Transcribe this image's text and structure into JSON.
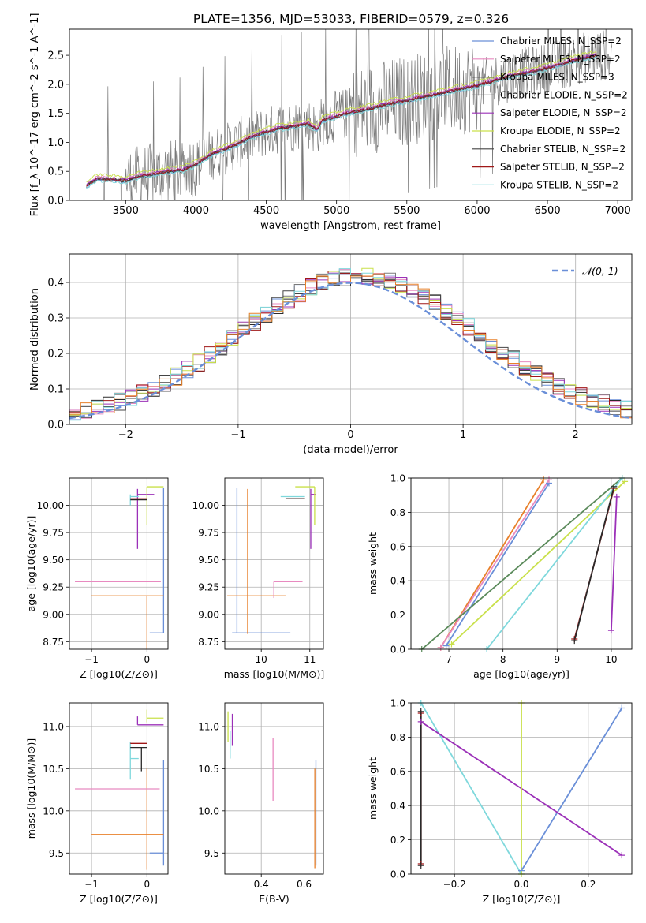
{
  "figure_title": "PLATE=1356, MJD=53033, FIBERID=0579, z=0.326",
  "palette": {
    "chabrier_miles": "#6a8fd8",
    "salpeter_miles": "#e88ac0",
    "kroupa_miles": "#2a2a2a",
    "chabrier_elodie": "#7a7a7a",
    "salpeter_elodie": "#9b30b8",
    "kroupa_elodie": "#c9e04a",
    "chabrier_stelib": "#444444",
    "salpeter_stelib": "#a01818",
    "kroupa_stelib": "#7fd8dc",
    "orange": "#e8802a",
    "green": "#5a8a5a"
  },
  "chart_data": [
    {
      "id": "spectrum",
      "type": "line",
      "xlabel": "wavelength [Angstrom, rest frame]",
      "ylabel": "Flux [f_λ 10^-17 erg cm^-2 s^-1 A^-1]",
      "xlim": [
        3100,
        7100
      ],
      "ylim": [
        0,
        2.95
      ],
      "xticks": [
        3500,
        4000,
        4500,
        5000,
        5500,
        6000,
        6500,
        7000
      ],
      "yticks": [
        0.0,
        0.5,
        1.0,
        1.5,
        2.0,
        2.5
      ],
      "grid": false,
      "legend_position": "top-right",
      "legend": [
        {
          "label": "Chabrier MILES, N_SSP=2",
          "color_key": "chabrier_miles"
        },
        {
          "label": "Salpeter MILES, N_SSP=2",
          "color_key": "salpeter_miles"
        },
        {
          "label": "Kroupa MILES, N_SSP=3",
          "color_key": "kroupa_miles"
        },
        {
          "label": "Chabrier ELODIE, N_SSP=2",
          "color_key": "chabrier_elodie"
        },
        {
          "label": "Salpeter ELODIE, N_SSP=2",
          "color_key": "salpeter_elodie"
        },
        {
          "label": "Kroupa ELODIE, N_SSP=2",
          "color_key": "kroupa_elodie"
        },
        {
          "label": "Chabrier STELIB, N_SSP=2",
          "color_key": "chabrier_stelib"
        },
        {
          "label": "Salpeter STELIB, N_SSP=2",
          "color_key": "salpeter_stelib"
        },
        {
          "label": "Kroupa STELIB, N_SSP=2",
          "color_key": "kroupa_stelib"
        }
      ],
      "model_x": [
        3220,
        3300,
        3400,
        3500,
        3600,
        3700,
        3800,
        3900,
        4000,
        4100,
        4200,
        4300,
        4400,
        4500,
        4600,
        4700,
        4800,
        4860,
        4900,
        5000,
        5100,
        5200,
        5300,
        5400,
        5500,
        5600,
        5700,
        5800,
        5900,
        6000,
        6100,
        6200,
        6300,
        6400,
        6500,
        6600,
        6700,
        6800,
        6850
      ],
      "model_y": [
        0.25,
        0.38,
        0.36,
        0.34,
        0.42,
        0.45,
        0.5,
        0.52,
        0.62,
        0.78,
        0.88,
        0.98,
        1.1,
        1.18,
        1.25,
        1.28,
        1.32,
        1.22,
        1.38,
        1.45,
        1.52,
        1.56,
        1.62,
        1.68,
        1.72,
        1.78,
        1.82,
        1.88,
        1.93,
        1.98,
        2.05,
        2.12,
        2.18,
        2.22,
        2.28,
        2.35,
        2.42,
        2.48,
        2.5
      ],
      "model_offsets": {
        "chabrier_miles": -0.02,
        "salpeter_miles": 0.03,
        "kroupa_miles": 0.0,
        "chabrier_elodie": 0.0,
        "salpeter_elodie": 0.01,
        "kroupa_elodie": 0.07,
        "chabrier_stelib": -0.01,
        "salpeter_stelib": 0.0,
        "kroupa_stelib": -0.04
      },
      "data_color_key": "chabrier_elodie"
    },
    {
      "id": "residuals",
      "type": "line",
      "xlabel": "(data-model)/error",
      "ylabel": "Normed distribution",
      "xlim": [
        -2.5,
        2.5
      ],
      "ylim": [
        0,
        0.48
      ],
      "xticks": [
        -2,
        -1,
        0,
        1,
        2
      ],
      "yticks": [
        0.0,
        0.1,
        0.2,
        0.3,
        0.4
      ],
      "grid": true,
      "legend_position": "top-right",
      "legend": [
        {
          "label": "𝒩(0, 1)",
          "color_key": "chabrier_miles",
          "dashed": true
        }
      ],
      "bin_width": 0.1,
      "histogram_amplitude": 0.405,
      "histogram_sigma": 1.05,
      "histogram_center": 0.07,
      "series_keys": [
        "chabrier_miles",
        "salpeter_miles",
        "kroupa_miles",
        "chabrier_elodie",
        "salpeter_elodie",
        "kroupa_elodie",
        "chabrier_stelib",
        "salpeter_stelib",
        "kroupa_stelib",
        "orange"
      ]
    },
    {
      "id": "age_vs_Z",
      "type": "scatter",
      "xlabel": "Z [log10(Z/Z⊙)]",
      "ylabel": "age  [log10(age/yr)]",
      "xlim": [
        -1.4,
        0.38
      ],
      "ylim": [
        8.68,
        10.25
      ],
      "xticks": [
        -1,
        0
      ],
      "yticks": [
        8.75,
        9.0,
        9.25,
        9.5,
        9.75,
        10.0
      ],
      "grid": true,
      "errorbars": [
        {
          "color_key": "chabrier_miles",
          "x": 0.3,
          "y": 8.83,
          "xerr": [
            0.25,
            0.0
          ],
          "yerr": [
            0.0,
            1.33
          ]
        },
        {
          "color_key": "orange",
          "x": 0.0,
          "y": 9.17,
          "xerr": [
            1.0,
            0.3
          ],
          "yerr": [
            1.0,
            0.0
          ]
        },
        {
          "color_key": "salpeter_miles",
          "x": 0.0,
          "y": 9.3,
          "xerr": [
            1.3,
            0.25
          ],
          "yerr": [
            0.0,
            0.0
          ]
        },
        {
          "color_key": "salpeter_elodie",
          "x": -0.17,
          "y": 10.1,
          "xerr": [
            0.0,
            0.3
          ],
          "yerr": [
            0.5,
            0.05
          ]
        },
        {
          "color_key": "kroupa_elodie",
          "x": 0.0,
          "y": 10.17,
          "xerr": [
            0.0,
            0.3
          ],
          "yerr": [
            0.35,
            0.0
          ]
        },
        {
          "color_key": "kroupa_stelib",
          "x": -0.3,
          "y": 10.08,
          "xerr": [
            0.0,
            0.15
          ],
          "yerr": [
            0.08,
            0.02
          ]
        },
        {
          "color_key": "salpeter_stelib",
          "x": -0.1,
          "y": 10.06,
          "xerr": [
            0.2,
            0.1
          ],
          "yerr": [
            0.0,
            0.0
          ]
        },
        {
          "color_key": "kroupa_miles",
          "x": -0.1,
          "y": 10.05,
          "xerr": [
            0.2,
            0.1
          ],
          "yerr": [
            0.0,
            0.0
          ]
        }
      ]
    },
    {
      "id": "age_vs_mass",
      "type": "scatter",
      "xlabel": "mass [log10(M/M⊙)]",
      "ylabel": "",
      "xlim": [
        9.25,
        11.28
      ],
      "ylim": [
        8.68,
        10.25
      ],
      "xticks": [
        10,
        11
      ],
      "yticks": [
        8.75,
        9.0,
        9.25,
        9.5,
        9.75,
        10.0
      ],
      "grid": true,
      "errorbars": [
        {
          "color_key": "chabrier_miles",
          "x": 9.5,
          "y": 8.83,
          "xerr": [
            0.1,
            1.1
          ],
          "yerr": [
            0.0,
            1.33
          ]
        },
        {
          "color_key": "orange",
          "x": 9.72,
          "y": 9.17,
          "xerr": [
            0.42,
            0.78
          ],
          "yerr": [
            0.35,
            0.98
          ]
        },
        {
          "color_key": "salpeter_miles",
          "x": 10.26,
          "y": 9.3,
          "xerr": [
            0.0,
            0.59
          ],
          "yerr": [
            0.15,
            0.0
          ]
        },
        {
          "color_key": "salpeter_elodie",
          "x": 11.02,
          "y": 10.1,
          "xerr": [
            0.0,
            0.1
          ],
          "yerr": [
            0.5,
            0.05
          ]
        },
        {
          "color_key": "kroupa_elodie",
          "x": 11.1,
          "y": 10.17,
          "xerr": [
            0.4,
            0.0
          ],
          "yerr": [
            0.35,
            0.0
          ]
        },
        {
          "color_key": "kroupa_stelib",
          "x": 10.4,
          "y": 10.08,
          "xerr": [
            0.0,
            0.5
          ],
          "yerr": [
            0.0,
            0.0
          ]
        },
        {
          "color_key": "salpeter_stelib",
          "x": 10.8,
          "y": 10.06,
          "xerr": [
            0.3,
            0.1
          ],
          "yerr": [
            0.0,
            0.0
          ]
        },
        {
          "color_key": "kroupa_miles",
          "x": 10.8,
          "y": 10.06,
          "xerr": [
            0.3,
            0.1
          ],
          "yerr": [
            0.0,
            0.0
          ]
        }
      ]
    },
    {
      "id": "mass_weight_vs_age",
      "type": "line",
      "xlabel": "age  [log10(age/yr)]",
      "ylabel": "mass weight",
      "xlim": [
        6.3,
        10.38
      ],
      "ylim": [
        0,
        1.0
      ],
      "xticks": [
        7,
        8,
        9,
        10
      ],
      "yticks": [
        0.0,
        0.2,
        0.4,
        0.6,
        0.8,
        1.0
      ],
      "grid": true,
      "series": [
        {
          "color_key": "chabrier_miles",
          "x": [
            6.95,
            8.85
          ],
          "y": [
            0.02,
            0.97
          ]
        },
        {
          "color_key": "orange",
          "x": [
            6.85,
            8.75
          ],
          "y": [
            0.01,
            0.99
          ]
        },
        {
          "color_key": "salpeter_miles",
          "x": [
            6.85,
            8.85
          ],
          "y": [
            0.01,
            0.99
          ]
        },
        {
          "color_key": "green",
          "x": [
            6.5,
            10.2
          ],
          "y": [
            0.0,
            1.0
          ]
        },
        {
          "color_key": "kroupa_elodie",
          "x": [
            7.05,
            10.25
          ],
          "y": [
            0.03,
            0.98
          ]
        },
        {
          "color_key": "kroupa_stelib",
          "x": [
            7.7,
            10.2
          ],
          "y": [
            0.0,
            1.0
          ]
        },
        {
          "color_key": "salpeter_stelib",
          "x": [
            9.32,
            10.05
          ],
          "y": [
            0.06,
            0.94
          ]
        },
        {
          "color_key": "kroupa_miles",
          "x": [
            9.32,
            10.05
          ],
          "y": [
            0.05,
            0.95
          ]
        },
        {
          "color_key": "salpeter_elodie",
          "x": [
            10.0,
            10.1
          ],
          "y": [
            0.11,
            0.89
          ]
        }
      ]
    },
    {
      "id": "mass_vs_Z",
      "type": "scatter",
      "xlabel": "Z [log10(Z/Z⊙)]",
      "ylabel": "mass [log10(M/M⊙)]",
      "xlim": [
        -1.4,
        0.38
      ],
      "ylim": [
        9.25,
        11.28
      ],
      "xticks": [
        -1,
        0
      ],
      "yticks": [
        9.5,
        10.0,
        10.5,
        11.0
      ],
      "grid": true,
      "errorbars": [
        {
          "color_key": "chabrier_miles",
          "x": 0.3,
          "y": 9.5,
          "xerr": [
            0.25,
            0.0
          ],
          "yerr": [
            0.15,
            1.1
          ]
        },
        {
          "color_key": "orange",
          "x": 0.0,
          "y": 9.72,
          "xerr": [
            1.0,
            0.3
          ],
          "yerr": [
            0.42,
            0.78
          ]
        },
        {
          "color_key": "salpeter_miles",
          "x": 0.0,
          "y": 10.26,
          "xerr": [
            1.3,
            0.23
          ],
          "yerr": [
            0.0,
            0.0
          ]
        },
        {
          "color_key": "salpeter_elodie",
          "x": -0.17,
          "y": 11.02,
          "xerr": [
            0.0,
            0.47
          ],
          "yerr": [
            0.0,
            0.1
          ]
        },
        {
          "color_key": "kroupa_elodie",
          "x": 0.0,
          "y": 11.1,
          "xerr": [
            0.0,
            0.3
          ],
          "yerr": [
            0.05,
            0.1
          ]
        },
        {
          "color_key": "kroupa_stelib",
          "x": -0.3,
          "y": 10.62,
          "xerr": [
            0.0,
            0.15
          ],
          "yerr": [
            0.25,
            0.2
          ]
        },
        {
          "color_key": "salpeter_stelib",
          "x": -0.1,
          "y": 10.8,
          "xerr": [
            0.2,
            0.1
          ],
          "yerr": [
            0.0,
            0.0
          ]
        },
        {
          "color_key": "kroupa_miles",
          "x": -0.1,
          "y": 10.75,
          "xerr": [
            0.2,
            0.1
          ],
          "yerr": [
            0.28,
            0.0
          ]
        }
      ]
    },
    {
      "id": "mass_vs_ebv",
      "type": "scatter",
      "xlabel": "E(B-V)",
      "ylabel": "",
      "xlim": [
        0.23,
        0.69
      ],
      "ylim": [
        9.25,
        11.28
      ],
      "xticks": [
        0.4,
        0.6
      ],
      "yticks": [
        9.5,
        10.0,
        10.5,
        11.0
      ],
      "grid": true,
      "errorbars": [
        {
          "color_key": "chabrier_miles",
          "x": 0.655,
          "y": 9.95,
          "xerr": [
            0.0,
            0.0
          ],
          "yerr": [
            0.6,
            0.65
          ]
        },
        {
          "color_key": "orange",
          "x": 0.65,
          "y": 9.9,
          "xerr": [
            0.0,
            0.0
          ],
          "yerr": [
            0.58,
            0.6
          ]
        },
        {
          "color_key": "salpeter_miles",
          "x": 0.455,
          "y": 10.5,
          "xerr": [
            0.0,
            0.0
          ],
          "yerr": [
            0.38,
            0.36
          ]
        },
        {
          "color_key": "salpeter_elodie",
          "x": 0.265,
          "y": 10.95,
          "xerr": [
            0.0,
            0.0
          ],
          "yerr": [
            0.18,
            0.2
          ]
        },
        {
          "color_key": "kroupa_elodie",
          "x": 0.245,
          "y": 11.0,
          "xerr": [
            0.0,
            0.0
          ],
          "yerr": [
            0.18,
            0.18
          ]
        },
        {
          "color_key": "kroupa_stelib",
          "x": 0.255,
          "y": 10.8,
          "xerr": [
            0.0,
            0.0
          ],
          "yerr": [
            0.18,
            0.15
          ]
        }
      ]
    },
    {
      "id": "mass_weight_vs_Z",
      "type": "line",
      "xlabel": "Z [log10(Z/Z⊙)]",
      "ylabel": "mass weight",
      "xlim": [
        -0.33,
        0.33
      ],
      "ylim": [
        0,
        1.0
      ],
      "xticks": [
        -0.2,
        0.0,
        0.2
      ],
      "yticks": [
        0.0,
        0.2,
        0.4,
        0.6,
        0.8,
        1.0
      ],
      "grid": true,
      "series": [
        {
          "color_key": "chabrier_miles",
          "x": [
            0.0,
            0.3
          ],
          "y": [
            0.02,
            0.97
          ]
        },
        {
          "color_key": "kroupa_stelib",
          "x": [
            -0.3,
            0.0
          ],
          "y": [
            1.0,
            0.0
          ]
        },
        {
          "color_key": "salpeter_elodie",
          "x": [
            -0.3,
            0.3
          ],
          "y": [
            0.89,
            0.11
          ]
        },
        {
          "color_key": "kroupa_elodie",
          "x": [
            0.0,
            0.0
          ],
          "y": [
            0.0,
            1.0
          ]
        },
        {
          "color_key": "salpeter_stelib",
          "x": [
            -0.3,
            -0.3
          ],
          "y": [
            0.06,
            0.94
          ]
        },
        {
          "color_key": "kroupa_miles",
          "x": [
            -0.3,
            -0.3
          ],
          "y": [
            0.05,
            0.95
          ]
        }
      ]
    }
  ]
}
